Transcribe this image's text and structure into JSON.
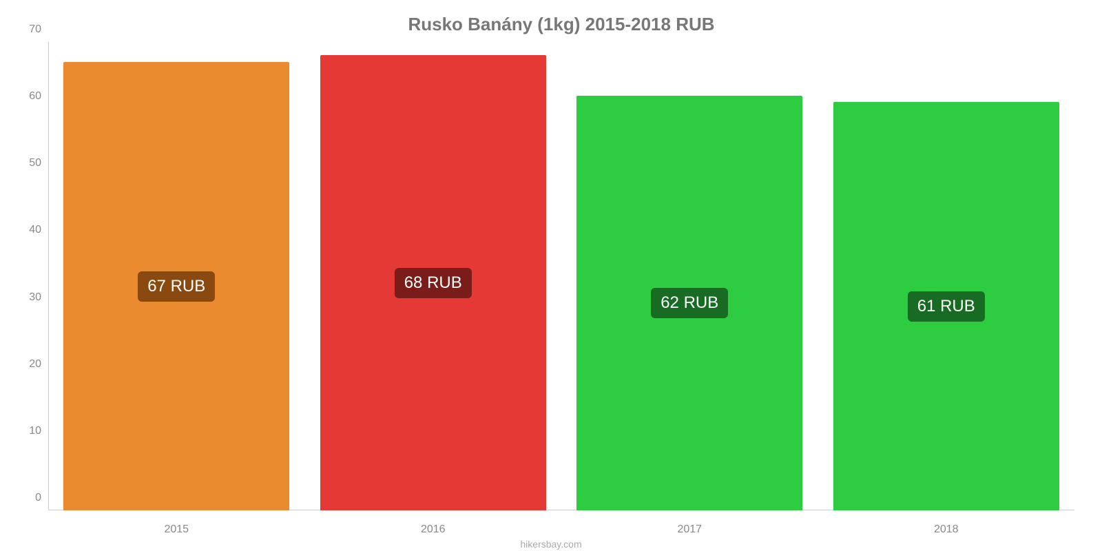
{
  "chart": {
    "type": "bar",
    "title": "Rusko Banány (1kg) 2015-2018 RUB",
    "title_color": "#777777",
    "title_fontsize": 26,
    "background_color": "#ffffff",
    "axis_color": "#cccccc",
    "tick_color": "#888888",
    "tick_fontsize": 16,
    "x_label_fontsize": 16,
    "ylim_min": 0,
    "ylim_max": 70,
    "yticks": [
      0,
      10,
      20,
      30,
      40,
      50,
      60,
      70
    ],
    "categories": [
      "2015",
      "2016",
      "2017",
      "2018"
    ],
    "bar_width_pct": 100,
    "bars": [
      {
        "value": 67,
        "display": "67 RUB",
        "fill": "#e98b2e",
        "label_bg": "#8a4a0f",
        "label_fg": "#ffffff"
      },
      {
        "value": 68,
        "display": "68 RUB",
        "fill": "#e53935",
        "label_bg": "#7a1c1a",
        "label_fg": "#ffffff"
      },
      {
        "value": 62,
        "display": "62 RUB",
        "fill": "#2ecc40",
        "label_bg": "#176b22",
        "label_fg": "#ffffff"
      },
      {
        "value": 61,
        "display": "61 RUB",
        "fill": "#2ecc40",
        "label_bg": "#176b22",
        "label_fg": "#ffffff"
      }
    ],
    "label_fontsize": 24,
    "footer_text": "hikersbay.com",
    "footer_color": "#aaaaaa",
    "footer_fontsize": 14
  }
}
